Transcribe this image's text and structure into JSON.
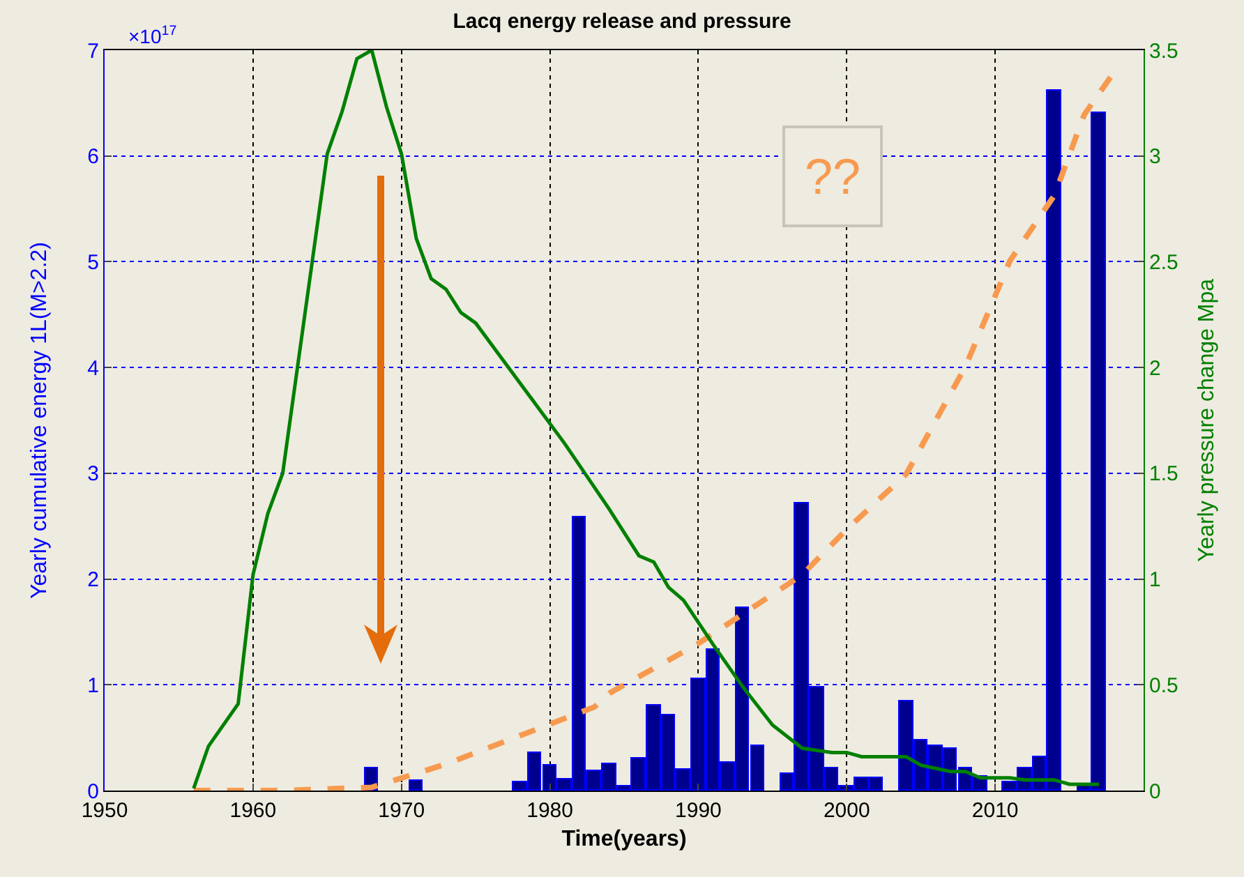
{
  "chart_data": {
    "type": "bar",
    "title": "Lacq energy release and pressure",
    "xlabel": "Time(years)",
    "ylabel": "Yearly cumulative energy 1L(M>2.2)",
    "y2label": "Yearly pressure change Mpa",
    "annotations": [
      "×10$^{17}$",
      "??"
    ],
    "xlim": [
      1950,
      2020
    ],
    "xticks": [
      1950,
      1960,
      1970,
      1980,
      1990,
      2000,
      2010
    ],
    "ylim": [
      0,
      7
    ],
    "yticks": [
      0,
      1,
      2,
      3,
      4,
      5,
      6,
      7
    ],
    "y2lim": [
      0,
      3.5
    ],
    "y2ticks": [
      0,
      0.5,
      1,
      1.5,
      2,
      2.5,
      3,
      3.5
    ],
    "grid": true,
    "series": [
      {
        "color": "#00008f",
        "x": [
          1968,
          1971,
          1978,
          1979,
          1980,
          1981,
          1982,
          1983,
          1984,
          1985,
          1986,
          1987,
          1988,
          1989,
          1990,
          1991,
          1992,
          1993,
          1994,
          1996,
          1997,
          1998,
          1999,
          2000,
          2001,
          2002,
          2004,
          2005,
          2006,
          2007,
          2008,
          2009,
          2011,
          2012,
          2013,
          2014,
          2016,
          2017
        ],
        "values": [
          0.21,
          0.09,
          0.08,
          0.36,
          0.24,
          0.1,
          2.58,
          0.18,
          0.25,
          0.04,
          0.3,
          0.8,
          0.71,
          0.2,
          1.05,
          1.33,
          0.26,
          1.73,
          0.42,
          0.16,
          2.72,
          0.98,
          0.21,
          0.04,
          0.12,
          0.12,
          0.84,
          0.47,
          0.42,
          0.4,
          0.21,
          0.13,
          0.08,
          0.21,
          0.32,
          6.62,
          0.05,
          6.41
        ]
      },
      {
        "type": "line",
        "axis": "y2",
        "color": "#008000",
        "line_style": "solid",
        "x": [
          1956,
          1957,
          1959,
          1960,
          1961,
          1962,
          1965,
          1966,
          1967,
          1968,
          1969,
          1970,
          1971,
          1972,
          1973,
          1974,
          1975,
          1981,
          1984,
          1986,
          1987,
          1988,
          1989,
          1991,
          1993,
          1995,
          1997,
          1999,
          2000,
          2001,
          2004,
          2005,
          2007,
          2008,
          2009,
          2011,
          2012,
          2014,
          2015,
          2016,
          2017
        ],
        "values": [
          0.01,
          0.21,
          0.41,
          1.02,
          1.31,
          1.5,
          3.01,
          3.21,
          3.46,
          3.5,
          3.23,
          3.01,
          2.61,
          2.42,
          2.37,
          2.26,
          2.21,
          1.64,
          1.33,
          1.11,
          1.08,
          0.96,
          0.9,
          0.69,
          0.49,
          0.31,
          0.2,
          0.18,
          0.18,
          0.16,
          0.16,
          0.12,
          0.09,
          0.09,
          0.06,
          0.06,
          0.05,
          0.05,
          0.03,
          0.03,
          0.03
        ]
      },
      {
        "type": "line",
        "color": "#f79a4f",
        "line_style": "dashed",
        "x": [
          1956,
          1962,
          1968,
          1973,
          1983,
          1984,
          1990,
          1997,
          2000,
          2004,
          2008,
          2011,
          2014,
          2016,
          2018
        ],
        "values": [
          0,
          0,
          0.03,
          0.25,
          0.79,
          0.92,
          1.39,
          2.04,
          2.47,
          2.99,
          4.01,
          5.01,
          5.63,
          6.39,
          6.79
        ]
      }
    ]
  }
}
